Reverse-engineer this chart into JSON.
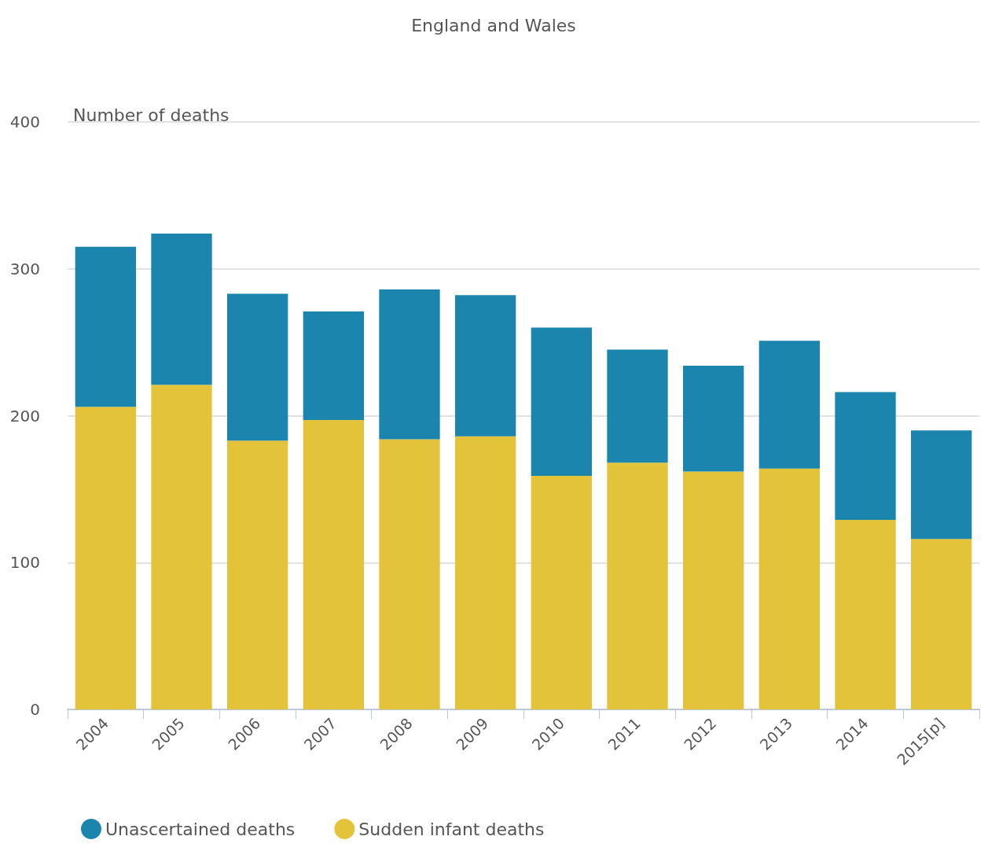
{
  "chart_data": {
    "type": "bar",
    "title": "England and Wales",
    "ylabel": "Number of deaths",
    "stacked": true,
    "categories": [
      "2004",
      "2005",
      "2006",
      "2007",
      "2008",
      "2009",
      "2010",
      "2011",
      "2012",
      "2013",
      "2014",
      "2015[p]"
    ],
    "series": [
      {
        "name": "Sudden infant deaths",
        "color": "#e3c33a",
        "values": [
          206,
          221,
          183,
          197,
          184,
          186,
          159,
          168,
          162,
          164,
          129,
          116
        ]
      },
      {
        "name": "Unascertained deaths",
        "color": "#1b85ad",
        "values": [
          109,
          103,
          100,
          74,
          102,
          96,
          101,
          77,
          72,
          87,
          87,
          74
        ]
      }
    ],
    "ylim": [
      0,
      400
    ],
    "yticks": [
      0,
      100,
      200,
      300,
      400
    ],
    "grid": "y",
    "legend": "bottom"
  }
}
